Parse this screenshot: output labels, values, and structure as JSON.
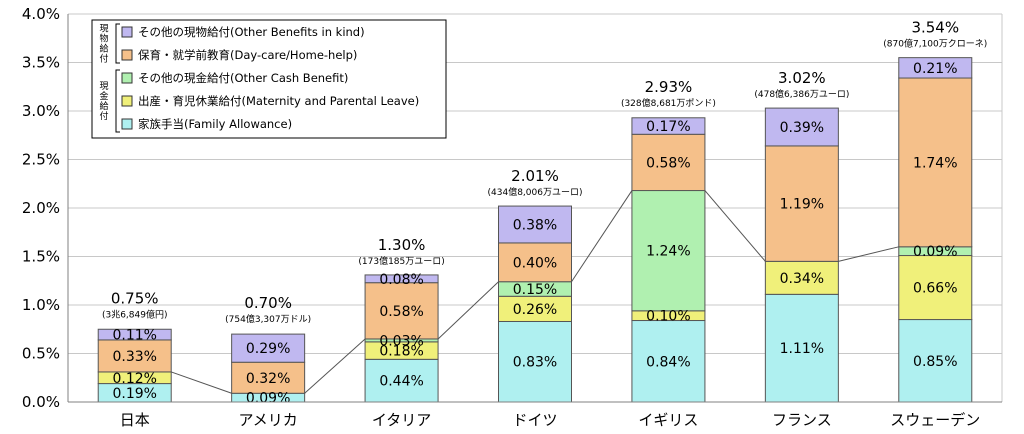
{
  "chart_data": {
    "type": "bar",
    "stacked": true,
    "title": "",
    "xlabel": "",
    "ylabel": "",
    "ylim": [
      0,
      4.0
    ],
    "y_ticks": [
      "0.0%",
      "0.5%",
      "1.0%",
      "1.5%",
      "2.0%",
      "2.5%",
      "3.0%",
      "3.5%",
      "4.0%"
    ],
    "tick_values": [
      0,
      0.5,
      1.0,
      1.5,
      2.0,
      2.5,
      3.0,
      3.5,
      4.0
    ],
    "categories": [
      "日本",
      "アメリカ",
      "イタリア",
      "ドイツ",
      "イギリス",
      "フランス",
      "スウェーデン"
    ],
    "series": [
      {
        "name": "家族手当(Family Allowance)",
        "color": "#aff0f0",
        "values": [
          0.19,
          0.09,
          0.44,
          0.83,
          0.84,
          1.11,
          0.85
        ],
        "labels": [
          "0.19%",
          "0.09%",
          "0.44%",
          "0.83%",
          "0.84%",
          "1.11%",
          "0.85%"
        ]
      },
      {
        "name": "出産・育児休業給付(Maternity and Parental Leave)",
        "color": "#f0f07a",
        "values": [
          0.12,
          0.0,
          0.18,
          0.26,
          0.1,
          0.34,
          0.66
        ],
        "labels": [
          "0.12%",
          "",
          "0.18%",
          "0.26%",
          "0.10%",
          "0.34%",
          "0.66%"
        ]
      },
      {
        "name": "その他の現金給付(Other Cash Benefit)",
        "color": "#b0f0b0",
        "values": [
          0.0,
          0.0,
          0.03,
          0.15,
          1.24,
          0.0,
          0.09
        ],
        "labels": [
          "",
          "",
          "0.03%",
          "0.15%",
          "1.24%",
          "",
          "0.09%"
        ]
      },
      {
        "name": "保育・就学前教育(Day-care/Home-help)",
        "color": "#f5c08a",
        "values": [
          0.33,
          0.32,
          0.58,
          0.4,
          0.58,
          1.19,
          1.74
        ],
        "labels": [
          "0.33%",
          "0.32%",
          "0.58%",
          "0.40%",
          "0.58%",
          "1.19%",
          "1.74%"
        ]
      },
      {
        "name": "その他の現物給付(Other Benefits in kind)",
        "color": "#c0b8f0",
        "values": [
          0.11,
          0.29,
          0.08,
          0.38,
          0.17,
          0.39,
          0.21
        ],
        "labels": [
          "0.11%",
          "0.29%",
          "0.08%",
          "0.38%",
          "0.17%",
          "0.39%",
          "0.21%"
        ]
      }
    ],
    "totals": [
      "0.75%",
      "0.70%",
      "1.30%",
      "2.01%",
      "2.93%",
      "3.02%",
      "3.54%"
    ],
    "total_values": [
      0.75,
      0.7,
      1.3,
      2.01,
      2.93,
      3.02,
      3.54
    ],
    "amounts": [
      "(3兆6,849億円)",
      "(754億3,307万ドル)",
      "(173億185万ユーロ)",
      "(434億8,006万ユーロ)",
      "(328億8,681万ポンド)",
      "(478億6,386万ユーロ)",
      "(870億7,100万クローネ)"
    ],
    "legend": {
      "position": "top-left",
      "entries": [
        "その他の現物給付(Other Benefits in kind)",
        "保育・就学前教育(Day-care/Home-help)",
        "その他の現金給付(Other Cash Benefit)",
        "出産・育児休業給付(Maternity and Parental Leave)",
        "家族手当(Family Allowance)"
      ],
      "groups": [
        {
          "label": "現物給付",
          "entries": [
            0,
            1
          ]
        },
        {
          "label": "現金給付",
          "entries": [
            2,
            3,
            4
          ]
        }
      ]
    },
    "connector": "lines join the top of the cash-benefit stack across adjacent bars"
  },
  "colors": {
    "bar_border": "#555555",
    "grid": "#c8c8c8",
    "axis": "#808080",
    "connector": "#555555"
  }
}
